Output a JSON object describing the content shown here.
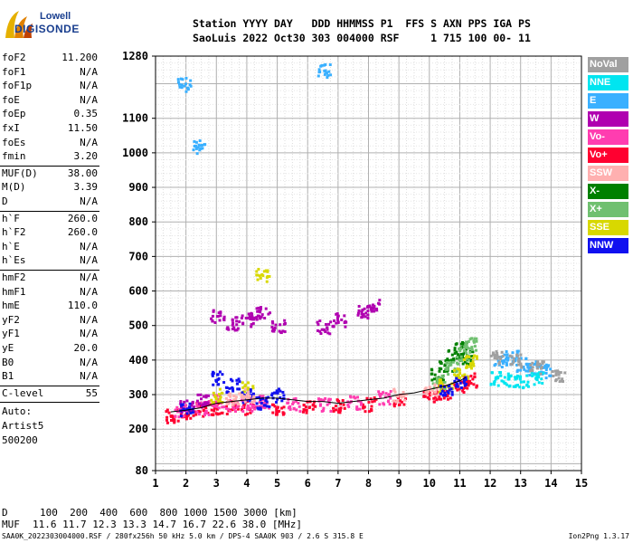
{
  "logo": {
    "line1": "Lowell",
    "line2": "DIGISONDE"
  },
  "header": {
    "labels": "Station YYYY DAY   DDD HHMMSS P1  FFS S AXN PPS IGA PS",
    "values": "SaoLuis 2022 Oct30 303 004000 RSF     1 715 100 00- 11"
  },
  "params_block1": [
    {
      "name": "foF2",
      "value": "11.200"
    },
    {
      "name": "foF1",
      "value": "N/A"
    },
    {
      "name": "foF1p",
      "value": "N/A"
    },
    {
      "name": "foE",
      "value": "N/A"
    },
    {
      "name": "foEp",
      "value": "0.35"
    },
    {
      "name": "fxI",
      "value": "11.50"
    },
    {
      "name": "foEs",
      "value": "N/A"
    },
    {
      "name": "fmin",
      "value": "3.20"
    }
  ],
  "params_block2": [
    {
      "name": "MUF(D)",
      "value": "38.00"
    },
    {
      "name": "M(D)",
      "value": "3.39"
    },
    {
      "name": "D",
      "value": "N/A"
    }
  ],
  "params_block3": [
    {
      "name": "h`F",
      "value": "260.0"
    },
    {
      "name": "h`F2",
      "value": "260.0"
    },
    {
      "name": "h`E",
      "value": "N/A"
    },
    {
      "name": "h`Es",
      "value": "N/A"
    }
  ],
  "params_block4": [
    {
      "name": "hmF2",
      "value": "N/A"
    },
    {
      "name": "hmF1",
      "value": "N/A"
    },
    {
      "name": "hmE",
      "value": "110.0"
    },
    {
      "name": "yF2",
      "value": "N/A"
    },
    {
      "name": "yF1",
      "value": "N/A"
    },
    {
      "name": "yE",
      "value": "20.0"
    },
    {
      "name": "B0",
      "value": "N/A"
    },
    {
      "name": "B1",
      "value": "N/A"
    }
  ],
  "clevel": {
    "name": "C-level",
    "value": "55"
  },
  "auto_lines": [
    "Auto:",
    "Artist5",
    "500200"
  ],
  "legend": [
    {
      "label": "NoVal",
      "color": "#a0a0a0"
    },
    {
      "label": "NNE",
      "color": "#00e5f0"
    },
    {
      "label": "E",
      "color": "#3ab0ff"
    },
    {
      "label": "W",
      "color": "#b000b0"
    },
    {
      "label": "Vo-",
      "color": "#ff3db0"
    },
    {
      "label": "Vo+",
      "color": "#ff0030"
    },
    {
      "label": "SSW",
      "color": "#ffb0b0"
    },
    {
      "label": "X-",
      "color": "#008000"
    },
    {
      "label": "X+",
      "color": "#70c070"
    },
    {
      "label": "SSE",
      "color": "#d8d800"
    },
    {
      "label": "NNW",
      "color": "#1010f0"
    }
  ],
  "muf_table": {
    "d_label": "D",
    "d_values": "100  200  400  600  800 1000 1500 3000 [km]",
    "muf_label": "MUF",
    "muf_values": "11.6 11.7 12.3 13.3 14.7 16.7 22.6 38.0 [MHz]"
  },
  "footer": {
    "left": "SAA0K_2022303004000.RSF / 280fx256h 50 kHz 5.0 km / DPS-4 SAA0K 903 / 2.6 S 315.8 E",
    "right": "Ion2Png 1.3.17"
  },
  "chart_data": {
    "type": "scatter",
    "xlim": [
      1,
      15
    ],
    "ylim": [
      80,
      1280
    ],
    "x_ticks": [
      1,
      2,
      3,
      4,
      5,
      6,
      7,
      8,
      9,
      10,
      11,
      12,
      13,
      14,
      15
    ],
    "y_ticks": [
      80,
      200,
      300,
      400,
      500,
      600,
      700,
      800,
      900,
      1000,
      1100,
      1280
    ],
    "grid": true,
    "series": [
      {
        "name": "Vo+",
        "color": "#ff0030",
        "x": [
          1.5,
          2.0,
          2.5,
          3.0,
          3.5,
          4.0,
          5.0,
          6.0,
          7.0,
          8.0,
          9.0,
          10.0,
          10.5,
          11.0,
          11.3
        ],
        "y": [
          240,
          250,
          260,
          265,
          265,
          265,
          265,
          265,
          270,
          275,
          285,
          300,
          310,
          330,
          345
        ]
      },
      {
        "name": "Vo-",
        "color": "#ff3db0",
        "x": [
          1.8,
          2.5,
          3.0,
          3.5,
          4.0,
          4.5,
          5.5,
          6.5,
          7.5,
          8.5
        ],
        "y": [
          255,
          265,
          285,
          270,
          275,
          280,
          275,
          275,
          280,
          295
        ]
      },
      {
        "name": "W",
        "color": "#b000b0",
        "x": [
          2.0,
          2.5,
          3.0,
          3.5,
          4.0,
          4.5,
          5.0,
          6.5,
          7.0,
          7.8,
          8.1
        ],
        "y": [
          270,
          290,
          530,
          510,
          520,
          540,
          500,
          500,
          520,
          540,
          560
        ]
      },
      {
        "name": "X-",
        "color": "#008000",
        "x": [
          10.2,
          10.5,
          10.8,
          11.0,
          11.2
        ],
        "y": [
          360,
          390,
          420,
          440,
          410
        ]
      },
      {
        "name": "X+",
        "color": "#70c070",
        "x": [
          10.3,
          10.7,
          11.1,
          11.3
        ],
        "y": [
          340,
          380,
          420,
          450
        ]
      },
      {
        "name": "SSE",
        "color": "#d8d800",
        "x": [
          3.0,
          4.0,
          4.5,
          10.5,
          11.0,
          11.3
        ],
        "y": [
          300,
          320,
          650,
          330,
          370,
          400
        ]
      },
      {
        "name": "E",
        "color": "#3ab0ff",
        "x": [
          12.3,
          12.7,
          13.0,
          13.4,
          13.8,
          1.9,
          2.4,
          6.5
        ],
        "y": [
          400,
          410,
          390,
          380,
          370,
          1200,
          1020,
          1240
        ]
      },
      {
        "name": "NNE",
        "color": "#00e5f0",
        "x": [
          12.2,
          12.6,
          13.0,
          13.5
        ],
        "y": [
          350,
          345,
          340,
          350
        ]
      },
      {
        "name": "NNW",
        "color": "#1010f0",
        "x": [
          2.0,
          3.0,
          3.5,
          4.0,
          4.5,
          5.0,
          10.5,
          11.0
        ],
        "y": [
          260,
          350,
          330,
          300,
          280,
          300,
          320,
          340
        ]
      },
      {
        "name": "NoVal",
        "color": "#a0a0a0",
        "x": [
          12.2,
          12.8,
          13.5,
          14.2
        ],
        "y": [
          410,
          400,
          380,
          360
        ]
      },
      {
        "name": "SSW",
        "color": "#ffb0b0",
        "x": [
          3.5,
          4.0,
          9.0,
          10.0
        ],
        "y": [
          290,
          300,
          300,
          320
        ]
      }
    ],
    "trace": {
      "x": [
        1.5,
        2.0,
        2.5,
        3.0,
        3.5,
        4.0,
        4.5,
        5.0,
        5.5,
        6.0,
        6.5,
        7.0,
        7.5,
        8.0,
        8.5,
        9.0,
        9.5,
        10.0,
        10.5,
        11.0,
        11.2
      ],
      "y": [
        250,
        255,
        262,
        275,
        280,
        285,
        290,
        290,
        285,
        280,
        280,
        275,
        280,
        285,
        290,
        300,
        305,
        315,
        325,
        340,
        350
      ]
    }
  }
}
